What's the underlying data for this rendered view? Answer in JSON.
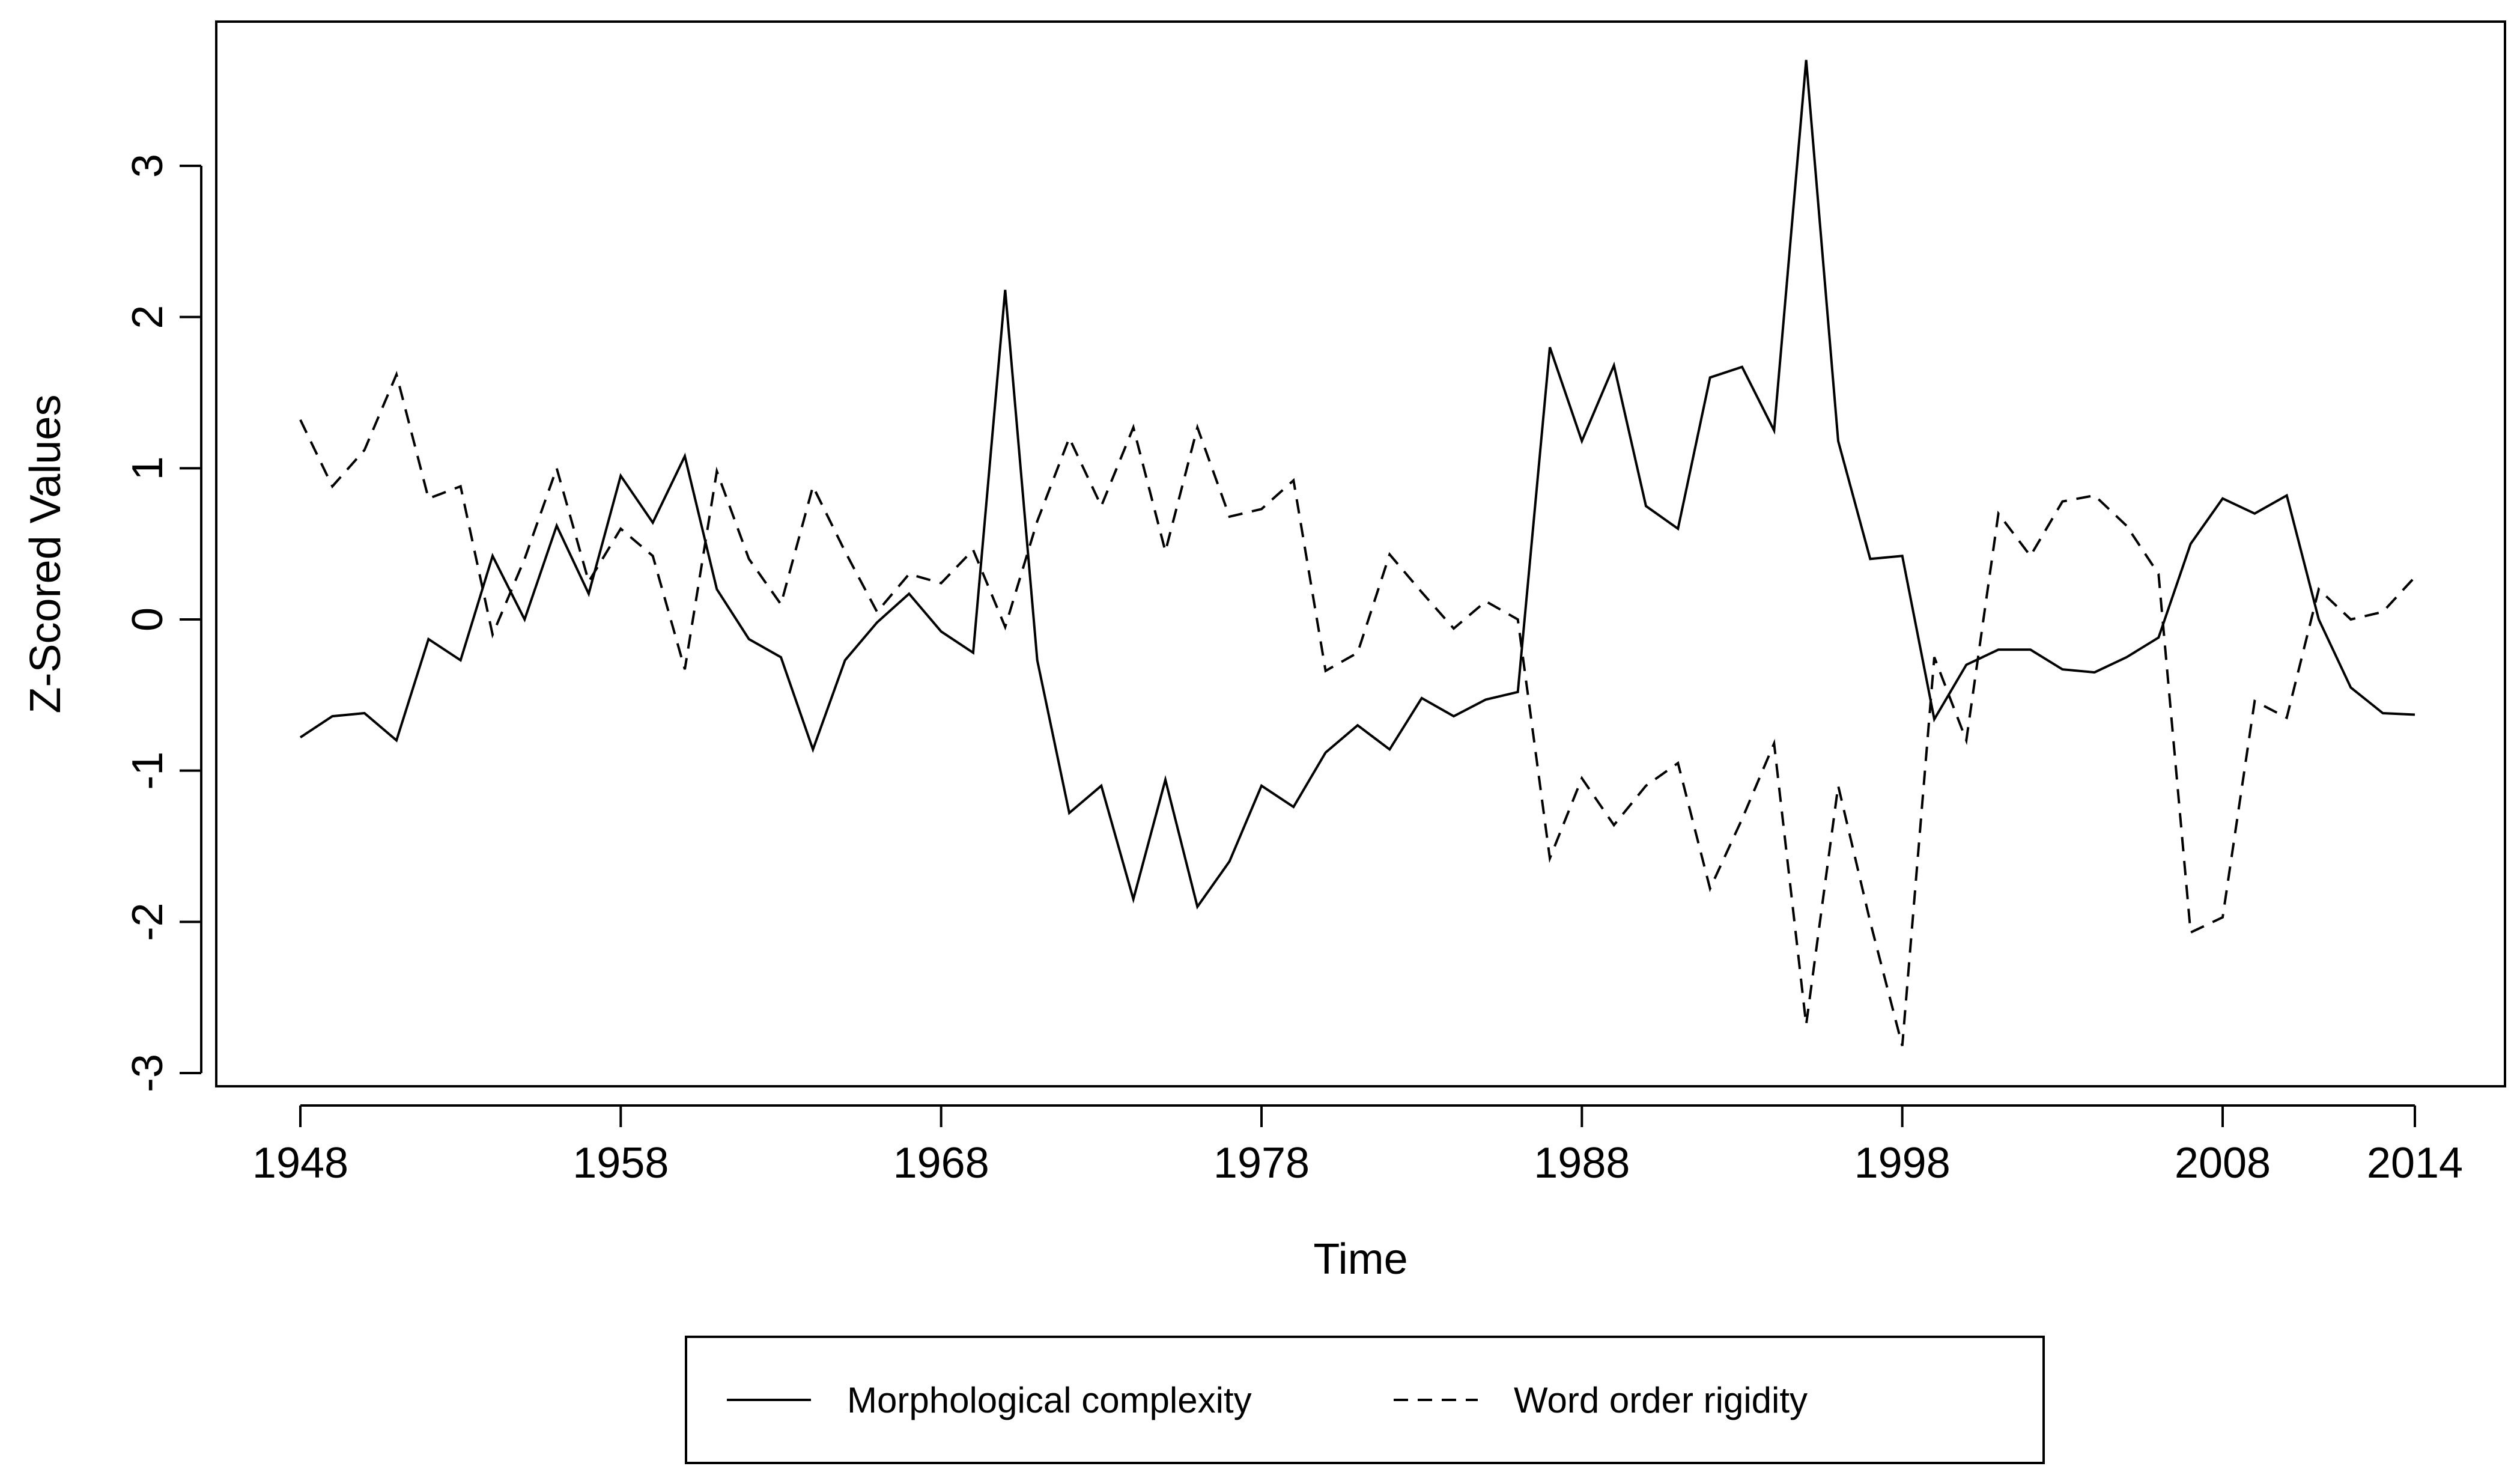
{
  "chart_data": {
    "type": "line",
    "title": "",
    "xlabel": "Time",
    "ylabel": "Z-Scored Values",
    "xlim": [
      1946,
      2016
    ],
    "ylim": [
      -3.3,
      4.0
    ],
    "x_ticks": [
      1948,
      1958,
      1968,
      1978,
      1988,
      1998,
      2008,
      2014
    ],
    "y_ticks": [
      -3,
      -2,
      -1,
      0,
      1,
      2,
      3
    ],
    "legend_position": "bottom",
    "colors": {
      "line": "#000000",
      "background": "#ffffff"
    },
    "x": [
      1948,
      1949,
      1950,
      1951,
      1952,
      1953,
      1954,
      1955,
      1956,
      1957,
      1958,
      1959,
      1960,
      1961,
      1962,
      1963,
      1964,
      1965,
      1966,
      1967,
      1968,
      1969,
      1970,
      1971,
      1972,
      1973,
      1974,
      1975,
      1976,
      1977,
      1978,
      1979,
      1980,
      1981,
      1982,
      1983,
      1984,
      1985,
      1986,
      1987,
      1988,
      1989,
      1990,
      1991,
      1992,
      1993,
      1994,
      1995,
      1996,
      1997,
      1998,
      1999,
      2000,
      2001,
      2002,
      2003,
      2004,
      2005,
      2006,
      2007,
      2008,
      2009,
      2010,
      2011,
      2012,
      2013,
      2014
    ],
    "series": [
      {
        "name": "Morphological complexity",
        "style": "solid",
        "values": [
          -0.78,
          -0.64,
          -0.62,
          -0.8,
          -0.13,
          -0.27,
          0.42,
          0.0,
          0.62,
          0.17,
          0.95,
          0.64,
          1.08,
          0.2,
          -0.13,
          -0.25,
          -0.86,
          -0.27,
          -0.02,
          0.17,
          -0.08,
          -0.22,
          2.18,
          -0.27,
          -1.28,
          -1.1,
          -1.85,
          -1.06,
          -1.9,
          -1.6,
          -1.1,
          -1.24,
          -0.88,
          -0.7,
          -0.86,
          -0.52,
          -0.64,
          -0.53,
          -0.48,
          1.8,
          1.18,
          1.68,
          0.75,
          0.6,
          1.6,
          1.67,
          1.25,
          3.7,
          1.18,
          0.4,
          0.42,
          -0.66,
          -0.3,
          -0.2,
          -0.2,
          -0.33,
          -0.35,
          -0.25,
          -0.12,
          0.5,
          0.8,
          0.7,
          0.82,
          0.0,
          -0.45,
          -0.62,
          -0.63
        ]
      },
      {
        "name": "Word order rigidity",
        "style": "dashed",
        "values": [
          1.32,
          0.88,
          1.12,
          1.62,
          0.8,
          0.88,
          -0.1,
          0.4,
          1.0,
          0.25,
          0.6,
          0.42,
          -0.33,
          0.98,
          0.4,
          0.1,
          0.88,
          0.45,
          0.05,
          0.3,
          0.24,
          0.46,
          -0.05,
          0.65,
          1.2,
          0.75,
          1.27,
          0.45,
          1.27,
          0.68,
          0.73,
          0.92,
          -0.34,
          -0.22,
          0.43,
          0.18,
          -0.06,
          0.12,
          0.0,
          -1.58,
          -1.05,
          -1.36,
          -1.1,
          -0.95,
          -1.78,
          -1.32,
          -0.82,
          -2.68,
          -1.1,
          -2.0,
          -2.82,
          -0.25,
          -0.8,
          0.7,
          0.42,
          0.78,
          0.82,
          0.62,
          0.3,
          -2.07,
          -1.97,
          -0.54,
          -0.65,
          0.2,
          0.0,
          0.05,
          0.28
        ]
      }
    ]
  }
}
